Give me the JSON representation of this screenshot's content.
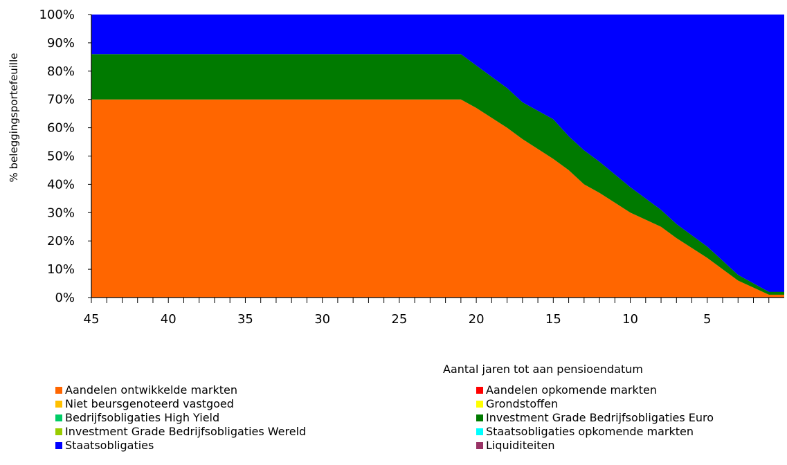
{
  "chart_data": {
    "type": "area",
    "stacked": true,
    "xlabel": "Aantal jaren tot aan pensioendatum",
    "ylabel": "% beleggingsportefeuille",
    "x_reversed": true,
    "xlim": [
      45,
      0
    ],
    "ylim": [
      0,
      100
    ],
    "x_ticks": [
      45,
      40,
      35,
      30,
      25,
      20,
      15,
      10,
      5
    ],
    "x_tick_labels": [
      "45",
      "40",
      "35",
      "30",
      "25",
      "20",
      "15",
      "10",
      "5"
    ],
    "y_ticks": [
      0,
      10,
      20,
      30,
      40,
      50,
      60,
      70,
      80,
      90,
      100
    ],
    "y_tick_labels": [
      "0%",
      "10%",
      "20%",
      "30%",
      "40%",
      "50%",
      "60%",
      "70%",
      "80%",
      "90%",
      "100%"
    ],
    "x": [
      45,
      21,
      20,
      18,
      17,
      15,
      14,
      13,
      12,
      10,
      8,
      7,
      5,
      4,
      3,
      1
    ],
    "series": [
      {
        "name": "Aandelen ontwikkelde markten",
        "color": "#FF6600",
        "values": [
          70,
          70,
          67,
          60,
          56,
          49,
          45,
          40,
          37,
          30,
          25,
          21,
          14,
          10,
          6,
          1
        ]
      },
      {
        "name": "Investment Grade Bedrijfsobligaties Euro",
        "color": "#007A00",
        "values": [
          16,
          16,
          15,
          14,
          13,
          14,
          12,
          12,
          11,
          9,
          6,
          5,
          4,
          3,
          2,
          1
        ]
      },
      {
        "name": "Staatsobligaties",
        "color": "#0000FF",
        "values": [
          14,
          14,
          18,
          26,
          31,
          37,
          43,
          48,
          52,
          61,
          69,
          74,
          82,
          87,
          92,
          98
        ]
      }
    ],
    "legend": {
      "placement": "bottom",
      "entries": [
        {
          "label": "Aandelen ontwikkelde markten",
          "color": "#FF6600"
        },
        {
          "label": "Aandelen opkomende markten",
          "color": "#FF0000"
        },
        {
          "label": "Niet beursgenoteerd vastgoed",
          "color": "#FFC000"
        },
        {
          "label": "Grondstoffen",
          "color": "#FFFF00"
        },
        {
          "label": "Bedrijfsobligaties High Yield",
          "color": "#00CC66"
        },
        {
          "label": "Investment Grade Bedrijfsobligaties Euro",
          "color": "#007A00"
        },
        {
          "label": "Investment Grade Bedrijfsobligaties Wereld",
          "color": "#99CC00"
        },
        {
          "label": "Staatsobligaties opkomende markten",
          "color": "#00FFFF"
        },
        {
          "label": "Staatsobligaties",
          "color": "#0000FF"
        },
        {
          "label": "Liquiditeiten",
          "color": "#993366"
        }
      ]
    },
    "grid": false
  }
}
